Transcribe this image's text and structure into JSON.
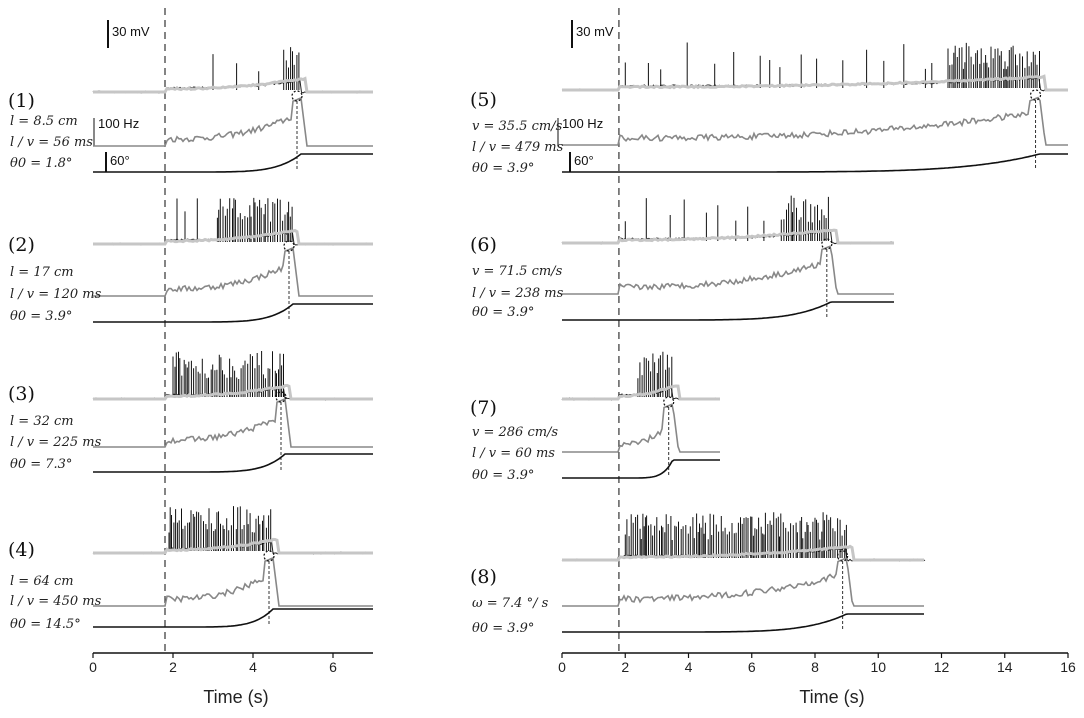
{
  "chart_data": [
    {
      "type": "line",
      "column": "left",
      "xlabel": "Time (s)",
      "xlim": [
        0,
        7
      ],
      "xticks": [
        0,
        2,
        4,
        6
      ],
      "stim_onset_s": 1.8,
      "scale_bars": {
        "voltage": "30 mV",
        "rate": "100 Hz",
        "angle": "60°"
      },
      "series": [
        {
          "label": "(1)",
          "params": [
            "l = 8.5 cm",
            "l / v = 56 ms",
            "θ0 = 1.8°"
          ],
          "t_end_s": 7.0,
          "collision_s": 5.2,
          "theta_final_deg": 60,
          "spike_onset_s": 3.0,
          "dense_from_s": 4.4
        },
        {
          "label": "(2)",
          "params": [
            "l = 17 cm",
            "l / v = 120 ms",
            "θ0 = 3.9°"
          ],
          "t_end_s": 7.0,
          "collision_s": 5.0,
          "theta_final_deg": 60,
          "spike_onset_s": 2.1,
          "dense_from_s": 2.9
        },
        {
          "label": "(3)",
          "params": [
            "l = 32 cm",
            "l / v = 225 ms",
            "θ0 = 7.3°"
          ],
          "t_end_s": 7.0,
          "collision_s": 4.8,
          "theta_final_deg": 60,
          "spike_onset_s": 2.0,
          "dense_from_s": 2.0
        },
        {
          "label": "(4)",
          "params": [
            "l = 64 cm",
            "l / v = 450 ms",
            "θ0 = 14.5°"
          ],
          "t_end_s": 7.0,
          "collision_s": 4.5,
          "theta_final_deg": 60,
          "spike_onset_s": 1.9,
          "dense_from_s": 1.9
        }
      ]
    },
    {
      "type": "line",
      "column": "right",
      "xlabel": "Time (s)",
      "xlim": [
        0,
        16
      ],
      "xticks": [
        0,
        2,
        4,
        6,
        8,
        10,
        12,
        14,
        16
      ],
      "stim_onset_s": 1.8,
      "scale_bars": {
        "voltage": "30 mV",
        "rate": "100 Hz",
        "angle": "60°"
      },
      "series": [
        {
          "label": "(5)",
          "params": [
            "v = 35.5 cm/s",
            "l / v = 479 ms",
            "θ0 = 3.9°"
          ],
          "t_end_s": 16.0,
          "collision_s": 15.1,
          "theta_final_deg": 60,
          "spike_onset_s": 2.0,
          "dense_from_s": 12.0
        },
        {
          "label": "(6)",
          "params": [
            "v = 71.5 cm/s",
            "l / v = 238 ms",
            "θ0 = 3.9°"
          ],
          "t_end_s": 10.5,
          "collision_s": 8.5,
          "theta_final_deg": 60,
          "spike_onset_s": 2.0,
          "dense_from_s": 6.5
        },
        {
          "label": "(7)",
          "params": [
            "v = 286 cm/s",
            "l / v = 60 ms",
            "θ0 = 3.9°"
          ],
          "t_end_s": 5.0,
          "collision_s": 3.5,
          "theta_final_deg": 60,
          "spike_onset_s": 2.4,
          "dense_from_s": 2.4
        },
        {
          "label": "(8)",
          "params": [
            "ω = 7.4 °/ s",
            "θ0 = 3.9°"
          ],
          "t_end_s": 11.5,
          "collision_s": 9.0,
          "theta_final_deg": 60,
          "spike_onset_s": 2.0,
          "dense_from_s": 2.0
        }
      ]
    }
  ]
}
